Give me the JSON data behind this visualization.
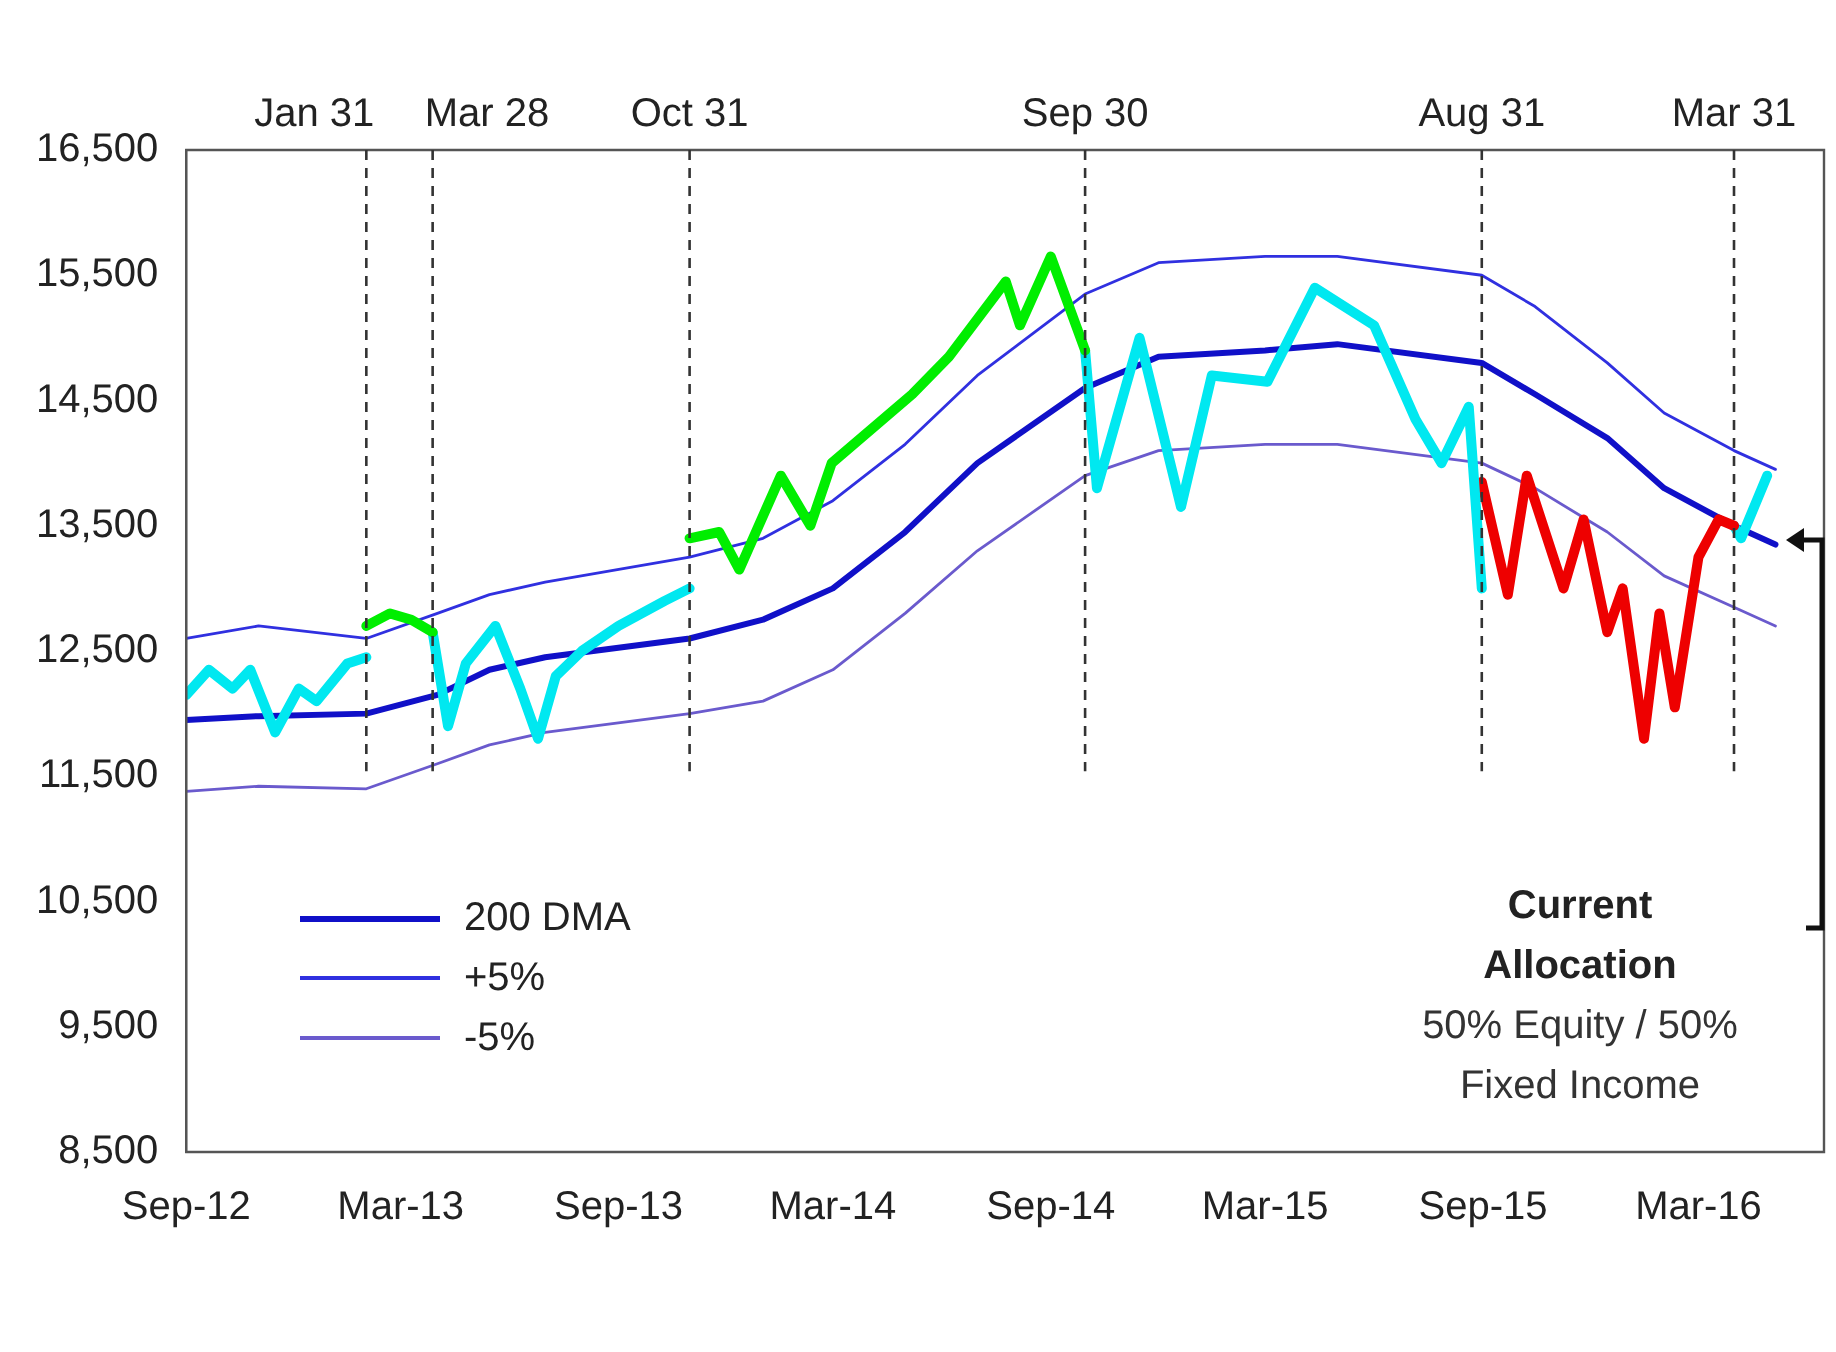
{
  "chart_data": {
    "type": "line",
    "series": [
      {
        "color": "#00e8f0",
        "x": [
          "2012-09-01",
          "2012-09-20",
          "2012-10-10",
          "2012-10-25",
          "2012-11-15",
          "2012-12-05",
          "2012-12-20",
          "2013-01-15",
          "2013-01-31"
        ],
        "values": [
          12150,
          12350,
          12200,
          12350,
          11850,
          12200,
          12100,
          12400,
          12450
        ]
      },
      {
        "color": "#00ee00",
        "x": [
          "2013-01-31",
          "2013-02-20",
          "2013-03-10",
          "2013-03-28"
        ],
        "values": [
          12700,
          12800,
          12750,
          12650
        ]
      },
      {
        "color": "#00e8f0",
        "x": [
          "2013-03-28",
          "2013-04-10",
          "2013-04-25",
          "2013-05-20",
          "2013-06-10",
          "2013-06-25",
          "2013-07-10",
          "2013-08-01",
          "2013-09-01",
          "2013-10-10",
          "2013-10-31"
        ],
        "values": [
          12650,
          11900,
          12400,
          12700,
          12200,
          11800,
          12300,
          12500,
          12700,
          12900,
          13000
        ]
      },
      {
        "color": "#00ee00",
        "x": [
          "2013-10-31",
          "2013-11-25",
          "2013-12-12",
          "2014-01-16",
          "2014-02-10",
          "2014-02-28",
          "2014-05-07",
          "2014-06-07",
          "2014-07-25",
          "2014-08-06",
          "2014-09-01",
          "2014-09-30"
        ],
        "values": [
          13400,
          13450,
          13150,
          13900,
          13500,
          14000,
          14550,
          14850,
          15450,
          15100,
          15650,
          14900
        ]
      },
      {
        "color": "#00e8f0",
        "x": [
          "2014-09-30",
          "2014-10-10",
          "2014-11-15",
          "2014-12-20",
          "2015-01-15",
          "2015-03-03",
          "2015-04-12",
          "2015-06-01",
          "2015-07-06",
          "2015-07-28",
          "2015-08-20",
          "2015-08-31"
        ],
        "values": [
          14900,
          13800,
          15000,
          13650,
          14700,
          14650,
          15400,
          15100,
          14350,
          14000,
          14450,
          13000
        ]
      },
      {
        "color": "#ee0000",
        "x": [
          "2015-08-31",
          "2015-09-22",
          "2015-10-08",
          "2015-11-08",
          "2015-11-25",
          "2015-12-15",
          "2015-12-28",
          "2016-01-15",
          "2016-01-28",
          "2016-02-10",
          "2016-03-01",
          "2016-03-18",
          "2016-03-31"
        ],
        "values": [
          13850,
          12950,
          13900,
          13000,
          13550,
          12650,
          13000,
          11800,
          12800,
          12050,
          13250,
          13550,
          13500
        ]
      },
      {
        "color": "#00e8f0",
        "x": [
          "2016-03-31",
          "2016-04-06",
          "2016-04-28"
        ],
        "values": [
          13500,
          13400,
          13900
        ]
      },
      {
        "name": "200 DMA",
        "color": "#1010c8",
        "x": [
          "2012-09-01",
          "2012-11-01",
          "2013-01-31",
          "2013-04-01",
          "2013-05-15",
          "2013-07-01",
          "2013-10-31",
          "2014-01-01",
          "2014-03-01",
          "2014-05-01",
          "2014-07-01",
          "2014-09-30",
          "2014-12-01",
          "2015-03-01",
          "2015-05-01",
          "2015-08-31",
          "2015-10-15",
          "2015-12-15",
          "2016-02-01",
          "2016-03-31",
          "2016-05-05"
        ],
        "values": [
          11950,
          11980,
          12000,
          12150,
          12350,
          12450,
          12600,
          12750,
          13000,
          13450,
          14000,
          14600,
          14850,
          14900,
          14950,
          14800,
          14550,
          14200,
          13800,
          13500,
          13350
        ]
      },
      {
        "name": "+5%",
        "color": "#3030e0",
        "x": [
          "2012-09-01",
          "2012-11-01",
          "2013-01-31",
          "2013-04-01",
          "2013-05-15",
          "2013-07-01",
          "2013-10-31",
          "2014-01-01",
          "2014-03-01",
          "2014-05-01",
          "2014-07-01",
          "2014-09-30",
          "2014-12-01",
          "2015-03-01",
          "2015-05-01",
          "2015-08-31",
          "2015-10-15",
          "2015-12-15",
          "2016-02-01",
          "2016-03-31",
          "2016-05-05"
        ],
        "values": [
          12600,
          12700,
          12600,
          12800,
          12950,
          13050,
          13250,
          13400,
          13700,
          14150,
          14700,
          15350,
          15600,
          15650,
          15650,
          15500,
          15250,
          14800,
          14400,
          14100,
          13950
        ]
      },
      {
        "name": "-5%",
        "color": "#6a5acd",
        "x": [
          "2012-09-01",
          "2012-11-01",
          "2013-01-31",
          "2013-04-01",
          "2013-05-15",
          "2013-07-01",
          "2013-10-31",
          "2014-01-01",
          "2014-03-01",
          "2014-05-01",
          "2014-07-01",
          "2014-09-30",
          "2014-12-01",
          "2015-03-01",
          "2015-05-01",
          "2015-08-31",
          "2015-10-15",
          "2015-12-15",
          "2016-02-01",
          "2016-03-31",
          "2016-05-05"
        ],
        "values": [
          11380,
          11420,
          11400,
          11600,
          11750,
          11850,
          12000,
          12100,
          12350,
          12800,
          13300,
          13900,
          14100,
          14150,
          14150,
          14000,
          13800,
          13450,
          13100,
          12850,
          12700
        ]
      }
    ],
    "xlim": [
      "2012-09-01",
      "2016-06-15"
    ],
    "xticks": [
      {
        "value": "2012-09-01",
        "label": "Sep-12"
      },
      {
        "value": "2013-03-01",
        "label": "Mar-13"
      },
      {
        "value": "2013-09-01",
        "label": "Sep-13"
      },
      {
        "value": "2014-03-01",
        "label": "Mar-14"
      },
      {
        "value": "2014-09-01",
        "label": "Sep-14"
      },
      {
        "value": "2015-03-01",
        "label": "Mar-15"
      },
      {
        "value": "2015-09-01",
        "label": "Sep-15"
      },
      {
        "value": "2016-03-01",
        "label": "Mar-16"
      }
    ],
    "ylim": [
      8500,
      16500
    ],
    "yticks": [
      {
        "value": 8500,
        "label": "8,500"
      },
      {
        "value": 9500,
        "label": "9,500"
      },
      {
        "value": 10500,
        "label": "10,500"
      },
      {
        "value": 11500,
        "label": "11,500"
      },
      {
        "value": 12500,
        "label": "12,500"
      },
      {
        "value": 13500,
        "label": "13,500"
      },
      {
        "value": 14500,
        "label": "14,500"
      },
      {
        "value": 15500,
        "label": "15,500"
      },
      {
        "value": 16500,
        "label": "16,500"
      }
    ],
    "ref_lines": [
      {
        "axis": "x",
        "value": "2013-01-31",
        "label": "Jan 31",
        "line_style": "dashed",
        "color": "#333333"
      },
      {
        "axis": "x",
        "value": "2013-03-28",
        "label": "Mar 28",
        "line_style": "dashed",
        "color": "#333333"
      },
      {
        "axis": "x",
        "value": "2013-10-31",
        "label": "Oct 31",
        "line_style": "dashed",
        "color": "#333333"
      },
      {
        "axis": "x",
        "value": "2014-09-30",
        "label": "Sep 30",
        "line_style": "dashed",
        "color": "#333333"
      },
      {
        "axis": "x",
        "value": "2015-08-31",
        "label": "Aug 31",
        "line_style": "dashed",
        "color": "#333333"
      },
      {
        "axis": "x",
        "value": "2016-03-31",
        "label": "Mar 31",
        "line_style": "dashed",
        "color": "#333333"
      }
    ],
    "annotations": [
      "Current Allocation",
      "50% Equity / 50% Fixed Income"
    ],
    "grid": false,
    "legend": "bottom left",
    "marker": "none",
    "line_style": "solid"
  }
}
